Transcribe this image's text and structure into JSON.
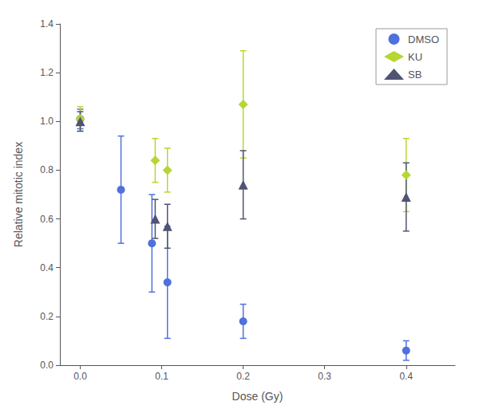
{
  "chart_data": {
    "type": "scatter",
    "xlabel": "Dose (Gy)",
    "ylabel": "Relative mitotic index",
    "xlim": [
      -0.025,
      0.46
    ],
    "ylim": [
      0,
      1.4
    ],
    "xticks": [
      {
        "value": 0,
        "label": "0.0"
      },
      0.1,
      0.2,
      0.3,
      0.4
    ],
    "yticks": [
      {
        "value": 0,
        "label": "0.0"
      },
      0.2,
      0.4,
      0.6,
      0.8,
      {
        "value": 1.0,
        "label": "1.0"
      },
      1.2,
      1.4
    ],
    "grid": false,
    "legend": "upper right",
    "series": [
      {
        "name": "DMSO",
        "marker": "circle",
        "x": [
          0,
          0.05,
          0.088,
          0.107,
          0.2,
          0.4
        ],
        "values": [
          1.01,
          0.72,
          0.5,
          0.34,
          0.18,
          0.06
        ],
        "yerr": [
          0.04,
          0.22,
          0.2,
          0.23,
          0.07,
          0.04
        ]
      },
      {
        "name": "KU",
        "marker": "diamond",
        "x": [
          0,
          0.092,
          0.107,
          0.2,
          0.4
        ],
        "values": [
          1.01,
          0.84,
          0.8,
          1.07,
          0.78
        ],
        "yerr": [
          0.05,
          0.09,
          0.09,
          0.22,
          0.15
        ]
      },
      {
        "name": "SB",
        "marker": "triangle",
        "x": [
          0,
          0.092,
          0.107,
          0.2,
          0.4
        ],
        "values": [
          1.0,
          0.6,
          0.57,
          0.74,
          0.69
        ],
        "yerr": [
          0.04,
          0.08,
          0.09,
          0.14,
          0.14
        ]
      }
    ]
  }
}
